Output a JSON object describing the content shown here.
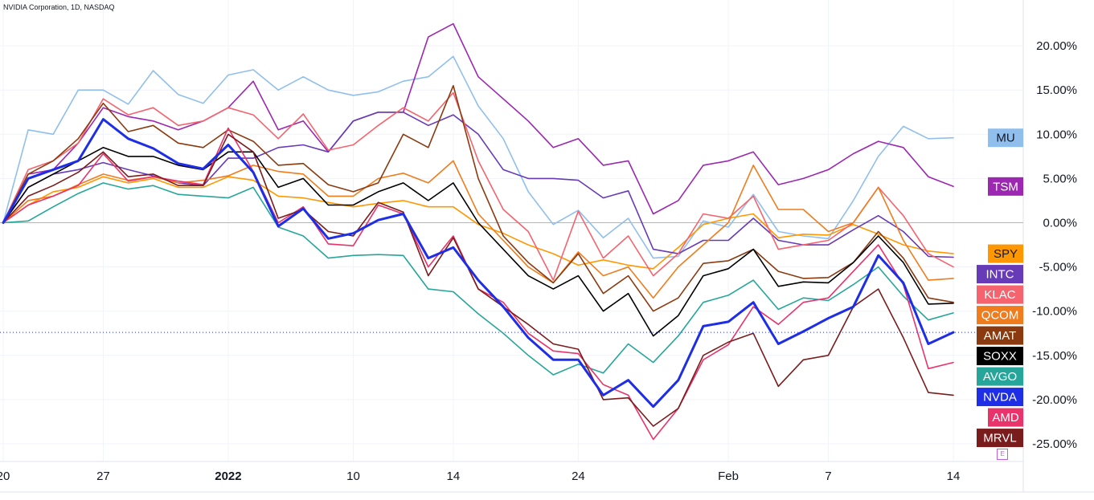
{
  "symbol_info": "NVIDIA Corporation, 1D, NASDAQ",
  "scale_badge": "E",
  "chart_data": {
    "type": "line",
    "title": "NVIDIA Corporation, 1D, NASDAQ",
    "xlabel": "",
    "ylabel": "",
    "ylim": [
      -27,
      24.5
    ],
    "grid": true,
    "baseline": 0,
    "y_ticks": [
      {
        "value": 20,
        "label": "20.00%"
      },
      {
        "value": 15,
        "label": "15.00%"
      },
      {
        "value": 10,
        "label": "10.00%"
      },
      {
        "value": 5,
        "label": "5.00%"
      },
      {
        "value": 0,
        "label": "0.00%"
      },
      {
        "value": -5,
        "label": "-5.00%"
      },
      {
        "value": -10,
        "label": "-10.00%"
      },
      {
        "value": -15,
        "label": "-15.00%"
      },
      {
        "value": -20,
        "label": "-20.00%"
      },
      {
        "value": -25,
        "label": "-25.00%"
      }
    ],
    "x_ticks": [
      {
        "index": 0,
        "label": "20",
        "bold": false
      },
      {
        "index": 4,
        "label": "27",
        "bold": false
      },
      {
        "index": 9,
        "label": "2022",
        "bold": true
      },
      {
        "index": 14,
        "label": "10",
        "bold": false
      },
      {
        "index": 18,
        "label": "14",
        "bold": false
      },
      {
        "index": 23,
        "label": "24",
        "bold": false
      },
      {
        "index": 29,
        "label": "Feb",
        "bold": false
      },
      {
        "index": 33,
        "label": "7",
        "bold": false
      },
      {
        "index": 38,
        "label": "14",
        "bold": false
      }
    ],
    "num_points": 39,
    "series": [
      {
        "name": "MU",
        "color": "#90bfee",
        "text_color": "#131722",
        "width": 1.6,
        "values": [
          0,
          10.5,
          10,
          15,
          15,
          13.4,
          17.2,
          14.5,
          13.5,
          16.7,
          17.3,
          15,
          16.5,
          15,
          14.4,
          14.8,
          16,
          16.5,
          18.8,
          13.2,
          9.5,
          3.5,
          -0.2,
          1.4,
          -1.7,
          0.5,
          -4,
          -3.8,
          0.2,
          -0.5,
          3.2,
          -1,
          -1.5,
          -1.8,
          2.5,
          7.5,
          10.9,
          9.5,
          9.6
        ]
      },
      {
        "name": "TSM",
        "color": "#9c27b0",
        "text_color": "#ffffff",
        "width": 1.6,
        "values": [
          0,
          5.5,
          6,
          9,
          13,
          12,
          11.5,
          10.5,
          11.5,
          13,
          16,
          10.5,
          11.5,
          8,
          11.5,
          12.5,
          12.5,
          21,
          22.5,
          16.5,
          14,
          11.5,
          8.5,
          9.5,
          6.5,
          7,
          1,
          2.5,
          6.5,
          7,
          8,
          4.3,
          5,
          6,
          7.8,
          9.2,
          8.5,
          5.2,
          4.1
        ]
      },
      {
        "name": "SPY",
        "color": "#ff9800",
        "text_color": "#131722",
        "width": 1.6,
        "values": [
          0,
          2,
          3.5,
          4,
          5.2,
          4.5,
          5,
          4,
          4,
          5.2,
          4.8,
          3,
          2.8,
          2.3,
          1.8,
          2.2,
          2.5,
          1.8,
          1.8,
          -0.2,
          -1.2,
          -2.5,
          -3.5,
          -4.8,
          -4.2,
          -4.8,
          -5.2,
          -2.8,
          -0.2,
          0.5,
          1,
          -1.7,
          -1.3,
          -1.4,
          -0.2,
          -1.3,
          -2.5,
          -3.2,
          -3.5
        ]
      },
      {
        "name": "INTC",
        "color": "#673ab7",
        "text_color": "#ffffff",
        "width": 1.6,
        "values": [
          0,
          4,
          5.5,
          6,
          6.8,
          6,
          5.3,
          4.5,
          4.2,
          7.3,
          7.3,
          8.5,
          8.8,
          8,
          11.5,
          12.5,
          12.5,
          11,
          12.2,
          10,
          6,
          5,
          5,
          4.8,
          2.8,
          3.6,
          -3,
          -3.5,
          -2,
          -2,
          0.5,
          -2,
          -2.5,
          -2.5,
          -0.8,
          0.8,
          -1,
          -3.8,
          -3.9
        ]
      },
      {
        "name": "KLAC",
        "color": "#f5646e",
        "text_color": "#ffffff",
        "width": 1.6,
        "values": [
          0,
          6,
          7,
          9,
          14,
          12.2,
          13,
          11,
          11.5,
          13,
          12.2,
          9.5,
          12.3,
          8.2,
          8.8,
          11,
          13,
          11.5,
          14.7,
          7,
          1.5,
          -1,
          -6.5,
          1.3,
          -4,
          -1.5,
          -6,
          -3.5,
          1,
          0.5,
          3,
          -3,
          -2.5,
          -2,
          0,
          4,
          0.8,
          -3.5,
          -5
        ]
      },
      {
        "name": "QCOM",
        "color": "#ef7c1d",
        "text_color": "#ffffff",
        "width": 1.6,
        "values": [
          0,
          2.5,
          3,
          4.3,
          5.5,
          4.8,
          5.2,
          4.5,
          4.8,
          5.3,
          6.5,
          5.8,
          5.5,
          3,
          3,
          5,
          5.6,
          4.5,
          7,
          1,
          -2,
          -5,
          -6.8,
          -3.3,
          -6,
          -5,
          -8.5,
          -5,
          -2.5,
          0,
          6.5,
          1.5,
          1.5,
          -1,
          0,
          4,
          -2,
          -6.5,
          -6.3
        ]
      },
      {
        "name": "AMAT",
        "color": "#8b3a0f",
        "text_color": "#ffffff",
        "width": 1.6,
        "values": [
          0,
          5.5,
          7,
          9.5,
          13.5,
          10.3,
          11,
          9,
          8.5,
          10.5,
          9.2,
          6.5,
          6.7,
          4.3,
          3.5,
          4.5,
          10,
          8.5,
          15.5,
          5,
          -1.5,
          -4.5,
          -6.8,
          -3.5,
          -8,
          -6,
          -10,
          -8.5,
          -4.6,
          -4.3,
          -3,
          -5.5,
          -6.3,
          -6.2,
          -4.5,
          -1,
          -4,
          -8.5,
          -9
        ]
      },
      {
        "name": "SOXX",
        "color": "#000000",
        "text_color": "#ffffff",
        "width": 1.6,
        "values": [
          0,
          4,
          5.5,
          7,
          8.5,
          7.5,
          7.5,
          6.5,
          6,
          8,
          8,
          4,
          5,
          2,
          2,
          3.5,
          4.5,
          2.5,
          4.5,
          0,
          -3,
          -6,
          -7.5,
          -6,
          -10,
          -8,
          -12.8,
          -10.5,
          -6,
          -5.2,
          -3,
          -7.2,
          -6.7,
          -6.8,
          -4.5,
          -1.5,
          -4.5,
          -9.2,
          -9.1
        ]
      },
      {
        "name": "AVGO",
        "color": "#26a69a",
        "text_color": "#ffffff",
        "width": 1.6,
        "values": [
          0,
          0.2,
          1.8,
          3.3,
          4.5,
          3.8,
          4.2,
          3.2,
          3,
          2.8,
          4,
          -0.5,
          -1.5,
          -4,
          -3.7,
          -3.6,
          -3.7,
          -7.5,
          -7.8,
          -10.3,
          -12.5,
          -15,
          -17.2,
          -16,
          -17,
          -13.7,
          -15.8,
          -12.8,
          -9,
          -8.2,
          -6.5,
          -9.8,
          -8.5,
          -8.8,
          -7,
          -5,
          -8.3,
          -11,
          -10.2
        ]
      },
      {
        "name": "NVDA",
        "color": "#1e2ee6",
        "text_color": "#ffffff",
        "width": 3,
        "values": [
          0,
          5,
          6,
          7,
          11.7,
          9.5,
          8.4,
          6.7,
          6.1,
          8.8,
          5.7,
          -0.4,
          1.6,
          -1.8,
          -1.2,
          0.3,
          1,
          -4,
          -2.8,
          -6.5,
          -9.5,
          -13,
          -15.5,
          -15.5,
          -19.5,
          -17.8,
          -20.8,
          -17.8,
          -11.7,
          -11.2,
          -9,
          -13.7,
          -12.3,
          -10.8,
          -9.5,
          -3.7,
          -6.8,
          -13.7,
          -12.4
        ]
      },
      {
        "name": "AMD",
        "color": "#e8336b",
        "text_color": "#ffffff",
        "width": 1.6,
        "values": [
          0,
          2,
          3,
          4.2,
          7.8,
          4.7,
          5.2,
          4.7,
          4.3,
          10.7,
          5.8,
          0,
          1.8,
          -2.4,
          -2.6,
          2,
          1,
          -5,
          -1.5,
          -7.5,
          -9,
          -12.5,
          -14.5,
          -14.8,
          -18.3,
          -19.5,
          -24.5,
          -21,
          -15.5,
          -13.8,
          -9.5,
          -11.5,
          -9,
          -8.5,
          -5.5,
          -2.5,
          -7,
          -16.5,
          -15.8
        ]
      },
      {
        "name": "MRVL",
        "color": "#7b1c1c",
        "text_color": "#ffffff",
        "width": 1.6,
        "values": [
          0,
          3,
          4.2,
          5.7,
          8,
          5.2,
          5.5,
          4.2,
          4.2,
          10,
          8,
          0.5,
          1.5,
          -1,
          -1.5,
          2.3,
          1.2,
          -6,
          -1.7,
          -7.5,
          -9.5,
          -11.5,
          -13.7,
          -14.3,
          -20,
          -19.8,
          -23,
          -21,
          -15,
          -13.5,
          -12.5,
          -18.5,
          -15.5,
          -15,
          -9.5,
          -7.5,
          -13,
          -19.2,
          -19.5
        ]
      }
    ]
  }
}
